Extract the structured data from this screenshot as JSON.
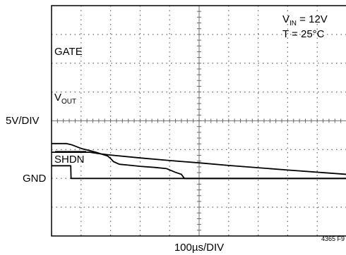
{
  "chart_data": {
    "type": "line",
    "style": "oscilloscope",
    "grid": true,
    "x_divisions": 10,
    "y_divisions": 8,
    "xlabel": "100µs/DIV",
    "ylabel": "5V/DIV",
    "x_unit": "µs",
    "x_per_div": 100,
    "v_per_div": 5,
    "ground_label": "GND",
    "ground_div": 2.0,
    "conditions": {
      "vin": {
        "main": "V",
        "sub": "IN",
        "rest": " = 12V"
      },
      "temp": "T = 25°C"
    },
    "figure_id": "4365 F9",
    "series": [
      {
        "name": "GATE",
        "label": {
          "main": "GATE",
          "sub": ""
        },
        "x": [
          0,
          50,
          70,
          100,
          150,
          190,
          200,
          210,
          230,
          260,
          300,
          350,
          390,
          420,
          440,
          450,
          1000
        ],
        "y": [
          6.05,
          6.05,
          5.8,
          5.2,
          4.55,
          3.9,
          3.45,
          2.9,
          2.45,
          2.3,
          2.1,
          1.9,
          1.7,
          1.05,
          0.7,
          0.0,
          0.0
        ]
      },
      {
        "name": "VOUT",
        "label": {
          "main": "V",
          "sub": "OUT"
        },
        "x": [
          0,
          130,
          160,
          200,
          300,
          400,
          500,
          600,
          700,
          800,
          1000
        ],
        "y": [
          4.55,
          4.55,
          4.3,
          4.05,
          3.55,
          3.1,
          2.7,
          2.25,
          1.85,
          1.45,
          0.7
        ]
      },
      {
        "name": "SHDN",
        "label": {
          "main": "SHDN",
          "sub": "",
          "overbar": true
        },
        "x": [
          0,
          65,
          66,
          1000
        ],
        "y": [
          2.2,
          2.2,
          0.0,
          0.0
        ]
      }
    ]
  }
}
